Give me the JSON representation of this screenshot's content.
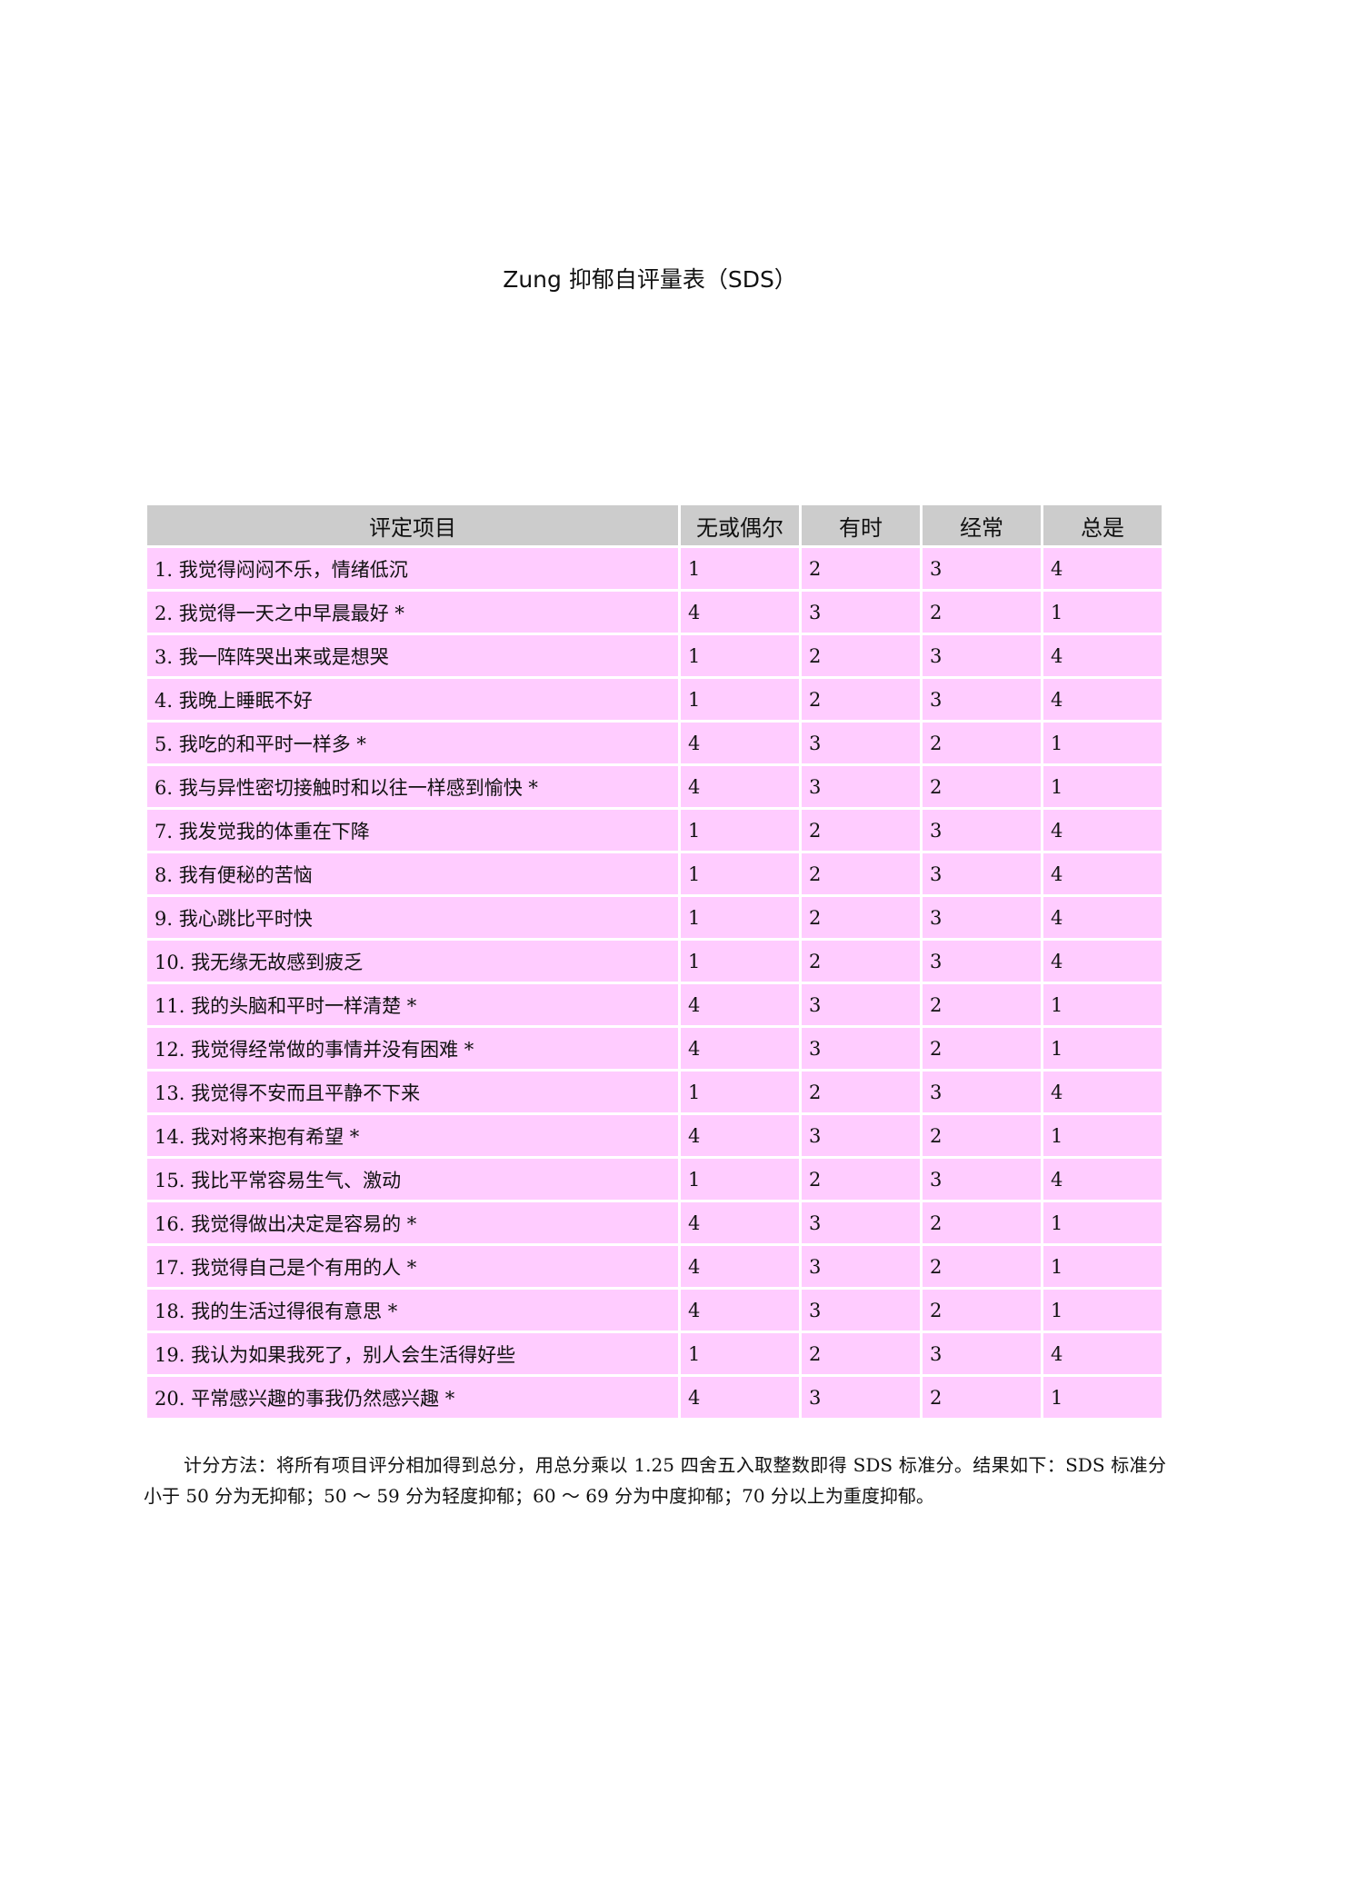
{
  "title": "Zung 抑郁自评量表（SDS）",
  "table": {
    "headers": [
      "评定项目",
      "无或偶尔",
      "有时",
      "经常",
      "总是"
    ],
    "rows": [
      {
        "item": "1. 我觉得闷闷不乐，情绪低沉",
        "scores": [
          "1",
          "2",
          "3",
          "4"
        ]
      },
      {
        "item": "2. 我觉得一天之中早晨最好 *",
        "scores": [
          "4",
          "3",
          "2",
          "1"
        ]
      },
      {
        "item": "3. 我一阵阵哭出来或是想哭",
        "scores": [
          "1",
          "2",
          "3",
          "4"
        ]
      },
      {
        "item": "4. 我晚上睡眠不好",
        "scores": [
          "1",
          "2",
          "3",
          "4"
        ]
      },
      {
        "item": "5. 我吃的和平时一样多 *",
        "scores": [
          "4",
          "3",
          "2",
          "1"
        ]
      },
      {
        "item": "6. 我与异性密切接触时和以往一样感到愉快 *",
        "scores": [
          "4",
          "3",
          "2",
          "1"
        ]
      },
      {
        "item": "7. 我发觉我的体重在下降",
        "scores": [
          "1",
          "2",
          "3",
          "4"
        ]
      },
      {
        "item": "8. 我有便秘的苦恼",
        "scores": [
          "1",
          "2",
          "3",
          "4"
        ]
      },
      {
        "item": "9. 我心跳比平时快",
        "scores": [
          "1",
          "2",
          "3",
          "4"
        ]
      },
      {
        "item": "10. 我无缘无故感到疲乏",
        "scores": [
          "1",
          "2",
          "3",
          "4"
        ]
      },
      {
        "item": "11. 我的头脑和平时一样清楚 *",
        "scores": [
          "4",
          "3",
          "2",
          "1"
        ]
      },
      {
        "item": "12. 我觉得经常做的事情并没有困难 *",
        "scores": [
          "4",
          "3",
          "2",
          "1"
        ]
      },
      {
        "item": "13. 我觉得不安而且平静不下来",
        "scores": [
          "1",
          "2",
          "3",
          "4"
        ]
      },
      {
        "item": "14. 我对将来抱有希望 *",
        "scores": [
          "4",
          "3",
          "2",
          "1"
        ]
      },
      {
        "item": "15. 我比平常容易生气、激动",
        "scores": [
          "1",
          "2",
          "3",
          "4"
        ]
      },
      {
        "item": "16. 我觉得做出决定是容易的 *",
        "scores": [
          "4",
          "3",
          "2",
          "1"
        ]
      },
      {
        "item": "17. 我觉得自己是个有用的人 *",
        "scores": [
          "4",
          "3",
          "2",
          "1"
        ]
      },
      {
        "item": "18. 我的生活过得很有意思 *",
        "scores": [
          "4",
          "3",
          "2",
          "1"
        ]
      },
      {
        "item": "19. 我认为如果我死了，别人会生活得好些",
        "scores": [
          "1",
          "2",
          "3",
          "4"
        ]
      },
      {
        "item": "20. 平常感兴趣的事我仍然感兴趣 *",
        "scores": [
          "4",
          "3",
          "2",
          "1"
        ]
      }
    ]
  },
  "note": "计分方法：将所有项目评分相加得到总分，用总分乘以 1.25 四舍五入取整数即得 SDS 标准分。结果如下：SDS 标准分小于 50 分为无抑郁；50 ～ 59 分为轻度抑郁；60 ～ 69 分为中度抑郁；70 分以上为重度抑郁。",
  "colors": {
    "header_bg": "#cccccc",
    "row_bg": "#ffccff"
  }
}
